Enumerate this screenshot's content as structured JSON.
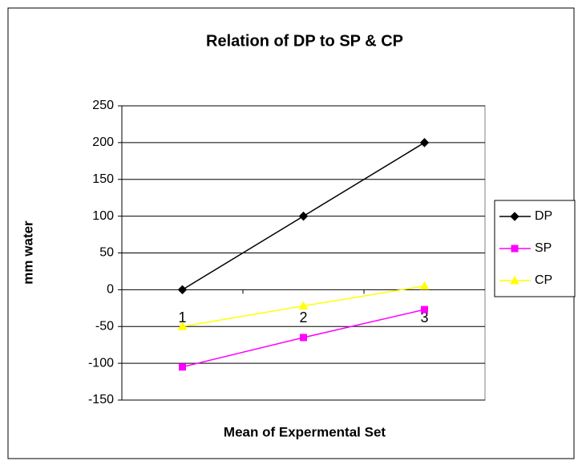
{
  "chart_data": {
    "type": "line",
    "title": "Relation of DP to SP & CP",
    "x_label": "Mean of Expermental Set",
    "y_label": "mm water",
    "categories": [
      "1",
      "2",
      "3"
    ],
    "series": [
      {
        "name": "DP",
        "color": "#000000",
        "marker": "diamond",
        "values": [
          0,
          100,
          200
        ]
      },
      {
        "name": "SP",
        "color": "#ff00ff",
        "marker": "square",
        "values": [
          -105,
          -65,
          -27
        ]
      },
      {
        "name": "CP",
        "color": "#ffff00",
        "marker": "triangle",
        "values": [
          -50,
          -22,
          5
        ]
      }
    ],
    "ylim": [
      -150,
      250
    ],
    "yticks": [
      -150,
      -100,
      -50,
      0,
      50,
      100,
      150,
      200,
      250
    ],
    "grid": true,
    "legend": "right"
  }
}
